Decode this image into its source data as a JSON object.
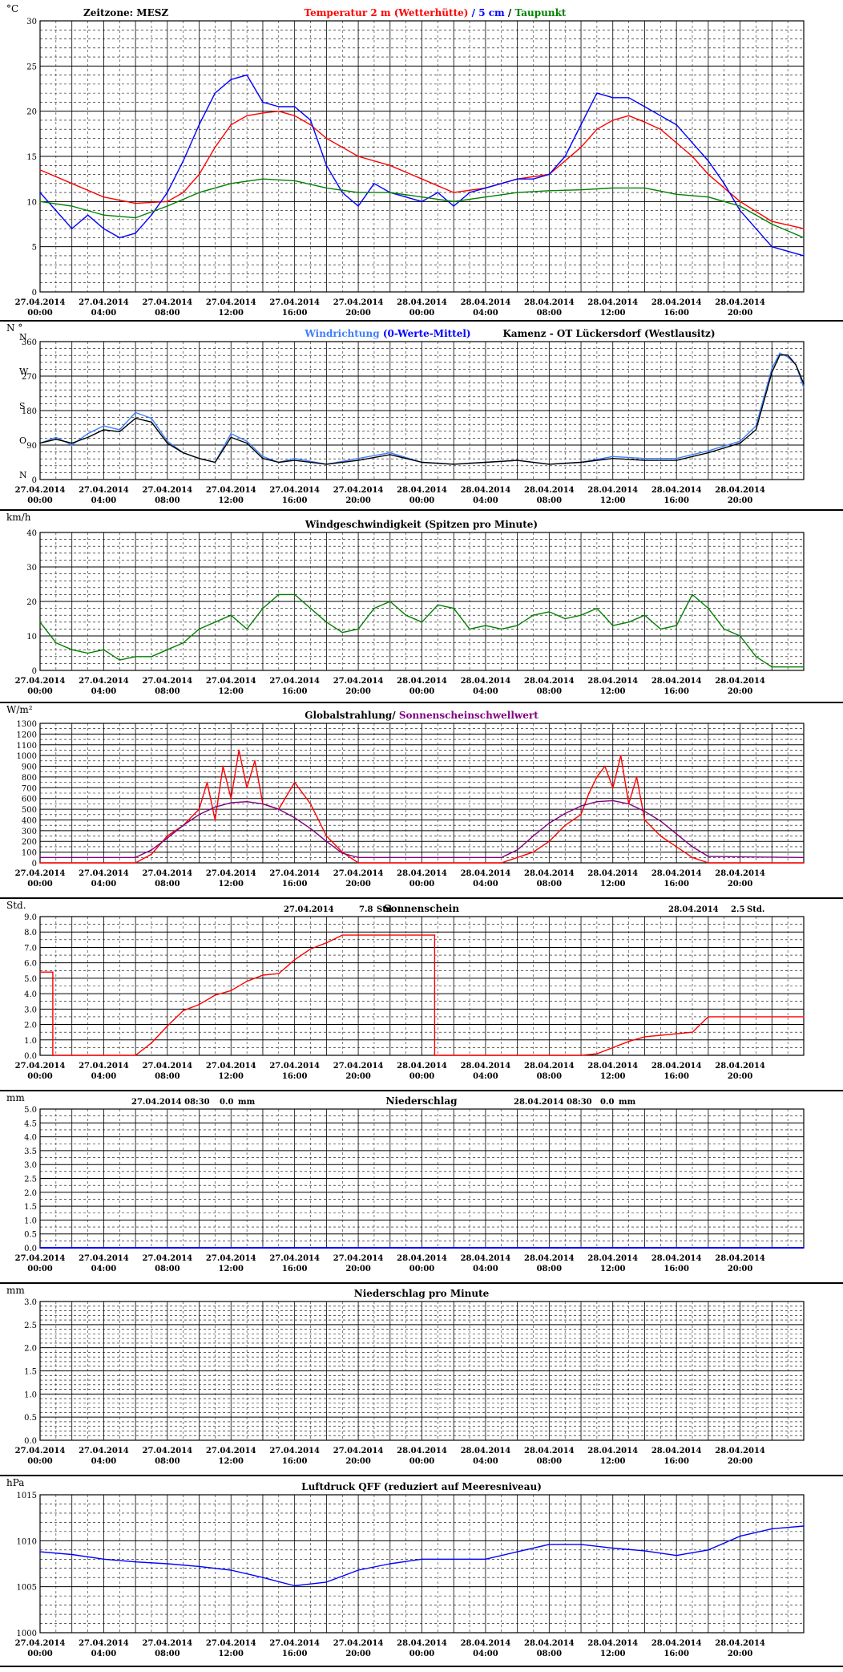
{
  "x_axis": {
    "dates": [
      "27.04.2014",
      "27.04.2014",
      "27.04.2014",
      "27.04.2014",
      "27.04.2014",
      "27.04.2014",
      "28.04.2014",
      "28.04.2014",
      "28.04.2014",
      "28.04.2014",
      "28.04.2014",
      "28.04.2014"
    ],
    "times": [
      "00:00",
      "04:00",
      "08:00",
      "12:00",
      "16:00",
      "20:00",
      "00:00",
      "04:00",
      "08:00",
      "12:00",
      "16:00",
      "20:00"
    ],
    "hours_per_major": 4,
    "total_hours": 48
  },
  "colors": {
    "red": "#ff0000",
    "blue": "#0000ff",
    "light_blue": "#3f7fff",
    "green": "#008000",
    "purple": "#800080",
    "black": "#000000",
    "grid_major": "#000000",
    "grid_minor": "#000000"
  },
  "chart_data": [
    {
      "id": "temperature",
      "type": "line",
      "unit": "°C",
      "corner_label": "Zeitzone: MESZ",
      "title_parts": [
        {
          "text": "Temperatur 2 m (Wetterhütte)",
          "color": "#ff0000"
        },
        {
          "text": "  /  ",
          "color": "#0000ff"
        },
        {
          "text": "5 cm",
          "color": "#0000ff"
        },
        {
          "text": " / ",
          "color": "#000000"
        },
        {
          "text": "Taupunkt",
          "color": "#008000"
        }
      ],
      "ylim": [
        0,
        30
      ],
      "yticks": [
        0,
        5,
        10,
        15,
        20,
        25,
        30
      ],
      "ytick_labels": [
        "0",
        "5",
        "10",
        "15",
        "20",
        "25",
        "30"
      ],
      "series": [
        {
          "name": "Temperatur 2 m (Wetterhütte)",
          "color": "#ff0000",
          "x": [
            0,
            2,
            4,
            6,
            8,
            9,
            10,
            11,
            12,
            13,
            14,
            15,
            16,
            17,
            18,
            19,
            20,
            22,
            24,
            26,
            28,
            30,
            32,
            34,
            35,
            36,
            37,
            38,
            39,
            40,
            41,
            42,
            44,
            46,
            48
          ],
          "y": [
            13.5,
            12,
            10.5,
            9.8,
            10,
            11,
            13,
            16,
            18.5,
            19.5,
            19.8,
            20,
            19.5,
            18.5,
            17,
            16,
            15,
            14,
            12.5,
            11,
            11.5,
            12.5,
            13,
            16,
            18,
            19,
            19.5,
            18.8,
            18,
            16.5,
            15,
            13,
            10,
            7.8,
            7
          ]
        },
        {
          "name": "5 cm",
          "color": "#0000ff",
          "x": [
            0,
            1,
            2,
            3,
            4,
            5,
            6,
            7,
            8,
            9,
            10,
            11,
            12,
            13,
            14,
            15,
            16,
            17,
            18,
            19,
            20,
            21,
            22,
            23,
            24,
            25,
            26,
            27,
            28,
            29,
            30,
            31,
            32,
            33,
            34,
            35,
            36,
            37,
            38,
            39,
            40,
            41,
            42,
            43,
            44,
            45,
            46,
            47,
            48
          ],
          "y": [
            11,
            9,
            7,
            8.5,
            7,
            6,
            6.5,
            8.5,
            11,
            14.5,
            18.5,
            22,
            23.5,
            24,
            21,
            20.5,
            20.5,
            19,
            14,
            11,
            9.5,
            12,
            11,
            10.5,
            10,
            11,
            9.5,
            11,
            11.5,
            12,
            12.5,
            12.5,
            13,
            15,
            18.5,
            22,
            21.5,
            21.5,
            20.5,
            19.5,
            18.5,
            16.5,
            14.5,
            12,
            9,
            7,
            5,
            4.5,
            4
          ]
        },
        {
          "name": "Taupunkt",
          "color": "#008000",
          "x": [
            0,
            2,
            4,
            6,
            8,
            10,
            12,
            14,
            16,
            18,
            20,
            22,
            24,
            26,
            28,
            30,
            32,
            34,
            36,
            38,
            40,
            42,
            44,
            46,
            48
          ],
          "y": [
            10,
            9.5,
            8.5,
            8.2,
            9.5,
            11,
            12,
            12.5,
            12.3,
            11.5,
            11,
            11,
            10.5,
            10,
            10.5,
            11,
            11.2,
            11.3,
            11.5,
            11.5,
            10.8,
            10.5,
            9.5,
            7.5,
            6
          ]
        }
      ]
    },
    {
      "id": "wind_direction",
      "type": "line",
      "unit": "N °",
      "title_parts": [
        {
          "text": "Windrichtung",
          "color": "#3f7fff"
        },
        {
          "text": " (0-Werte-Mittel)",
          "color": "#0000ff"
        }
      ],
      "station": "Kamenz - OT Lückersdorf (Westlausitz)",
      "ylim": [
        0,
        360
      ],
      "yticks": [
        0,
        90,
        180,
        270,
        360
      ],
      "ytick_labels": [
        "0",
        "90",
        "180",
        "270",
        "360"
      ],
      "compass_labels": [
        {
          "text": "N",
          "value": 360
        },
        {
          "text": "W",
          "value": 270
        },
        {
          "text": "S",
          "value": 180
        },
        {
          "text": "O",
          "value": 90
        },
        {
          "text": "N",
          "value": 0
        }
      ],
      "series": [
        {
          "name": "Windrichtung",
          "color": "#3f7fff",
          "x": [
            0,
            1,
            2,
            3,
            4,
            5,
            6,
            7,
            8,
            9,
            10,
            11,
            12,
            13,
            14,
            15,
            16,
            18,
            20,
            22,
            24,
            26,
            28,
            30,
            32,
            34,
            36,
            38,
            40,
            42,
            44,
            45,
            46,
            46.5,
            47,
            47.5,
            48
          ],
          "y": [
            95,
            110,
            90,
            120,
            140,
            130,
            175,
            160,
            100,
            70,
            55,
            45,
            120,
            100,
            60,
            45,
            55,
            40,
            55,
            70,
            45,
            40,
            45,
            50,
            40,
            45,
            60,
            55,
            55,
            75,
            100,
            140,
            290,
            330,
            320,
            300,
            240
          ]
        },
        {
          "name": "0-Werte-Mittel",
          "color": "#000000",
          "x": [
            0,
            1,
            2,
            3,
            4,
            5,
            6,
            7,
            8,
            9,
            10,
            11,
            12,
            13,
            14,
            15,
            16,
            18,
            20,
            22,
            24,
            26,
            28,
            30,
            32,
            34,
            36,
            38,
            40,
            42,
            44,
            45,
            46,
            46.5,
            47,
            47.5,
            48
          ],
          "y": [
            95,
            105,
            95,
            110,
            130,
            125,
            160,
            150,
            95,
            70,
            55,
            45,
            110,
            95,
            55,
            45,
            50,
            40,
            50,
            65,
            45,
            40,
            45,
            50,
            40,
            45,
            55,
            50,
            50,
            70,
            95,
            130,
            280,
            325,
            325,
            300,
            250
          ]
        }
      ]
    },
    {
      "id": "wind_speed",
      "type": "line",
      "unit": "km/h",
      "title": "Windgeschwindigkeit (Spitzen pro Minute)",
      "ylim": [
        0,
        40
      ],
      "yticks": [
        0,
        10,
        20,
        30,
        40
      ],
      "ytick_labels": [
        "0",
        "10",
        "20",
        "30",
        "40"
      ],
      "series": [
        {
          "name": "Windgeschwindigkeit",
          "color": "#008000",
          "x": [
            0,
            1,
            2,
            3,
            4,
            5,
            6,
            7,
            8,
            9,
            10,
            11,
            12,
            13,
            14,
            15,
            16,
            17,
            18,
            19,
            20,
            21,
            22,
            23,
            24,
            25,
            26,
            27,
            28,
            29,
            30,
            31,
            32,
            33,
            34,
            35,
            36,
            37,
            38,
            39,
            40,
            41,
            42,
            43,
            44,
            45,
            46,
            47,
            48
          ],
          "y": [
            14,
            8,
            6,
            5,
            6,
            3,
            4,
            4,
            6,
            8,
            12,
            14,
            16,
            12,
            18,
            22,
            22,
            18,
            14,
            11,
            12,
            18,
            20,
            16,
            14,
            19,
            18,
            12,
            13,
            12,
            13,
            16,
            17,
            15,
            16,
            18,
            13,
            14,
            16,
            12,
            13,
            22,
            18,
            12,
            10,
            4,
            1,
            1,
            1
          ]
        }
      ]
    },
    {
      "id": "global_radiation",
      "type": "line",
      "unit": "W/m²",
      "title_parts": [
        {
          "text": "Globalstrahlung/",
          "color": "#000000"
        },
        {
          "text": " Sonnenscheinschwellwert",
          "color": "#800080"
        }
      ],
      "ylim": [
        0,
        1300
      ],
      "yticks": [
        0,
        100,
        200,
        300,
        400,
        500,
        600,
        700,
        800,
        900,
        1000,
        1100,
        1200,
        1300
      ],
      "ytick_labels": [
        "0",
        "100",
        "200",
        "300",
        "400",
        "500",
        "600",
        "700",
        "800",
        "900",
        "1000",
        "1100",
        "1200",
        "1300"
      ],
      "series": [
        {
          "name": "Globalstrahlung",
          "color": "#ff0000",
          "x": [
            0,
            6,
            7,
            8,
            9,
            10,
            10.5,
            11,
            11.5,
            12,
            12.5,
            13,
            13.5,
            14,
            15,
            16,
            17,
            18,
            19,
            20,
            29,
            30,
            31,
            32,
            33,
            34,
            34.5,
            35,
            35.5,
            36,
            36.5,
            37,
            37.5,
            38,
            39,
            40,
            41,
            42,
            48
          ],
          "y": [
            0,
            0,
            80,
            250,
            350,
            500,
            750,
            400,
            900,
            600,
            1050,
            700,
            950,
            550,
            500,
            750,
            550,
            250,
            100,
            0,
            0,
            50,
            100,
            200,
            350,
            450,
            650,
            800,
            900,
            700,
            1000,
            550,
            800,
            400,
            250,
            150,
            50,
            0,
            0
          ]
        },
        {
          "name": "Sonnenscheinschwellwert",
          "color": "#800080",
          "x": [
            0,
            6,
            7,
            8,
            9,
            10,
            11,
            12,
            13,
            14,
            15,
            16,
            17,
            18,
            19,
            20,
            29,
            30,
            31,
            32,
            33,
            34,
            35,
            36,
            37,
            38,
            39,
            40,
            41,
            42,
            48
          ],
          "y": [
            50,
            50,
            120,
            230,
            350,
            450,
            520,
            560,
            570,
            550,
            500,
            420,
            320,
            200,
            90,
            50,
            50,
            120,
            250,
            370,
            460,
            530,
            570,
            580,
            550,
            480,
            390,
            270,
            150,
            60,
            50
          ]
        }
      ]
    },
    {
      "id": "sunshine",
      "type": "line",
      "unit": "Std.",
      "title": "Sonnenschein",
      "day_totals": [
        {
          "date": "27.04.2014",
          "value": "7.8",
          "unit": "Std."
        },
        {
          "date": "28.04.2014",
          "value": "2.5",
          "unit": "Std."
        }
      ],
      "ylim": [
        0,
        9
      ],
      "yticks": [
        0,
        1,
        2,
        3,
        4,
        5,
        6,
        7,
        8,
        9
      ],
      "ytick_labels": [
        "0.0",
        "1.0",
        "2.0",
        "3.0",
        "4.0",
        "5.0",
        "6.0",
        "7.0",
        "8.0",
        "9.0"
      ],
      "series": [
        {
          "name": "Sonnenschein",
          "color": "#ff0000",
          "x": [
            0,
            0.8,
            0.8,
            6,
            7,
            8,
            9,
            10,
            11,
            12,
            13,
            14,
            15,
            16,
            17,
            18,
            19,
            24.8,
            24.8,
            34,
            35,
            36,
            37,
            38,
            39,
            40,
            41,
            42,
            43,
            48
          ],
          "y": [
            5.4,
            5.4,
            0,
            0,
            0.8,
            1.9,
            2.9,
            3.3,
            3.9,
            4.2,
            4.8,
            5.2,
            5.3,
            6.2,
            6.9,
            7.3,
            7.8,
            7.8,
            0,
            0,
            0.1,
            0.5,
            0.9,
            1.2,
            1.3,
            1.4,
            1.5,
            2.5,
            2.5,
            2.5
          ]
        }
      ]
    },
    {
      "id": "precipitation",
      "type": "line",
      "unit": "mm",
      "title": "Niederschlag",
      "day_totals": [
        {
          "date": "27.04.2014 08:30",
          "value": "0.0",
          "unit": "mm"
        },
        {
          "date": "28.04.2014 08:30",
          "value": "0.0",
          "unit": "mm"
        }
      ],
      "ylim": [
        0,
        5
      ],
      "yticks": [
        0,
        0.5,
        1,
        1.5,
        2,
        2.5,
        3,
        3.5,
        4,
        4.5,
        5
      ],
      "ytick_labels": [
        "0.0",
        "0.5",
        "1.0",
        "1.5",
        "2.0",
        "2.5",
        "3.0",
        "3.5",
        "4.0",
        "4.5",
        "5.0"
      ],
      "series": [
        {
          "name": "Niederschlag",
          "color": "#0000ff",
          "x": [
            0,
            48
          ],
          "y": [
            0,
            0
          ]
        }
      ]
    },
    {
      "id": "precip_per_minute",
      "type": "line",
      "unit": "mm",
      "title": "Niederschlag pro Minute",
      "ylim": [
        0,
        3
      ],
      "yticks": [
        0,
        0.5,
        1,
        1.5,
        2,
        2.5,
        3
      ],
      "ytick_labels": [
        "0.0",
        "0.5",
        "1.0",
        "1.5",
        "2.0",
        "2.5",
        "3.0"
      ],
      "series": []
    },
    {
      "id": "pressure",
      "type": "line",
      "unit": "hPa",
      "title": "Luftdruck QFF (reduziert auf Meeresniveau)",
      "ylim": [
        1000,
        1015
      ],
      "yticks": [
        1000,
        1005,
        1010,
        1015
      ],
      "ytick_labels": [
        "1000",
        "1005",
        "1010",
        "1015"
      ],
      "series": [
        {
          "name": "Luftdruck QFF",
          "color": "#0000ff",
          "x": [
            0,
            2,
            4,
            6,
            8,
            10,
            12,
            14,
            16,
            18,
            20,
            22,
            24,
            26,
            28,
            30,
            32,
            34,
            36,
            38,
            40,
            42,
            44,
            46,
            48
          ],
          "y": [
            1008.8,
            1008.5,
            1008,
            1007.7,
            1007.5,
            1007.2,
            1006.8,
            1006,
            1005.1,
            1005.5,
            1006.8,
            1007.5,
            1008,
            1008,
            1008,
            1008.8,
            1009.6,
            1009.6,
            1009.2,
            1008.9,
            1008.4,
            1009,
            1010.5,
            1011.3,
            1011.6
          ]
        }
      ]
    }
  ]
}
